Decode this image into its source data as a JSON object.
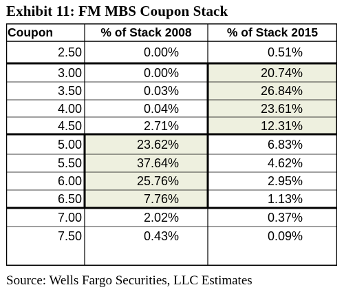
{
  "title": "Exhibit 11: FM MBS Coupon Stack",
  "source": "Source: Wells Fargo Securities, LLC Estimates",
  "colors": {
    "highlight": "#eef0df",
    "border": "#000000",
    "background": "#ffffff"
  },
  "chart_data": {
    "type": "table",
    "title": "Exhibit 11: FM MBS Coupon Stack",
    "columns": [
      "Coupon",
      "% of Stack 2008",
      "% of Stack 2015"
    ],
    "rows": [
      [
        "2.50",
        "0.00%",
        "0.51%"
      ],
      [
        "3.00",
        "0.00%",
        "20.74%"
      ],
      [
        "3.50",
        "0.03%",
        "26.84%"
      ],
      [
        "4.00",
        "0.04%",
        "23.61%"
      ],
      [
        "4.50",
        "2.71%",
        "12.31%"
      ],
      [
        "5.00",
        "23.62%",
        "6.83%"
      ],
      [
        "5.50",
        "37.64%",
        "4.62%"
      ],
      [
        "6.00",
        "25.76%",
        "2.95%"
      ],
      [
        "6.50",
        "7.76%",
        "1.13%"
      ],
      [
        "7.00",
        "2.02%",
        "0.37%"
      ],
      [
        "7.50",
        "0.43%",
        "0.09%"
      ]
    ],
    "highlighted_ranges": [
      {
        "column": "% of Stack 2015",
        "from_coupon": "3.00",
        "to_coupon": "4.50"
      },
      {
        "column": "% of Stack 2008",
        "from_coupon": "5.00",
        "to_coupon": "6.50"
      }
    ]
  }
}
